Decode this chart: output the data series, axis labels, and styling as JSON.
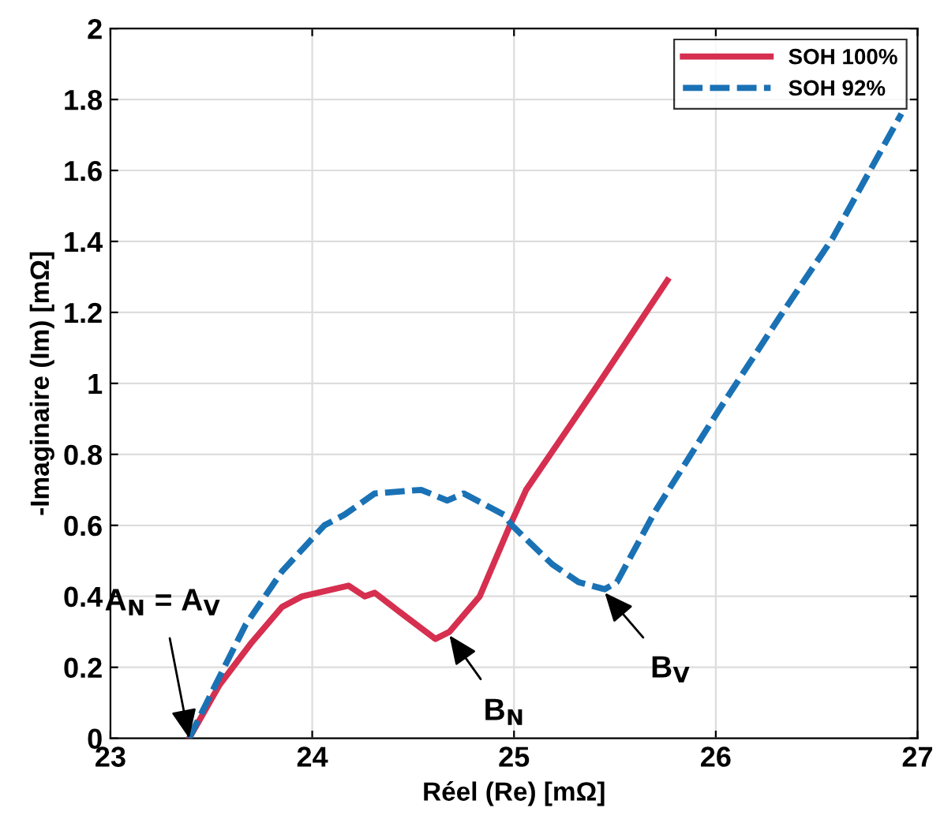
{
  "chart_data": {
    "type": "line",
    "xlabel": "Réel (Re) [mΩ]",
    "ylabel": "-Imaginaire (Im) [mΩ]",
    "xlim": [
      23,
      27
    ],
    "xticks": [
      23,
      24,
      25,
      26,
      27
    ],
    "ylim": [
      0,
      2
    ],
    "yticks": [
      0,
      0.2,
      0.4,
      0.6,
      0.8,
      1,
      1.2,
      1.4,
      1.6,
      1.8,
      2
    ],
    "grid": true,
    "legend": "top right",
    "series": [
      {
        "name": "SOH 100%",
        "color": "#d62f4f",
        "line_style": "solid",
        "x": [
          23.39,
          23.54,
          23.7,
          23.85,
          23.95,
          24.18,
          24.26,
          24.31,
          24.47,
          24.61,
          24.68,
          24.83,
          24.98,
          25.06,
          25.24,
          25.42,
          25.76
        ],
        "values": [
          0,
          0.15,
          0.27,
          0.37,
          0.4,
          0.43,
          0.4,
          0.41,
          0.34,
          0.28,
          0.3,
          0.4,
          0.6,
          0.7,
          0.85,
          1.0,
          1.29
        ]
      },
      {
        "name": "SOH 92%",
        "color": "#1a72b5",
        "line_style": "dashed",
        "x": [
          23.39,
          23.52,
          23.67,
          23.85,
          24.06,
          24.16,
          24.31,
          24.54,
          24.67,
          24.75,
          24.95,
          24.99,
          25.19,
          25.32,
          25.45,
          25.51,
          25.7,
          26.01,
          26.32,
          26.58,
          26.92
        ],
        "values": [
          0,
          0.15,
          0.32,
          0.47,
          0.6,
          0.63,
          0.69,
          0.7,
          0.67,
          0.69,
          0.63,
          0.6,
          0.49,
          0.44,
          0.42,
          0.44,
          0.64,
          0.92,
          1.19,
          1.41,
          1.76
        ]
      }
    ],
    "annotations": [
      {
        "text": "A$_{N}$ = A$_{V}$",
        "x": 23.39,
        "y": 0
      },
      {
        "text": "B$_{N}$",
        "x": 24.68,
        "y": 0.29
      },
      {
        "text": "B$_{V}$",
        "x": 25.45,
        "y": 0.41
      }
    ]
  }
}
